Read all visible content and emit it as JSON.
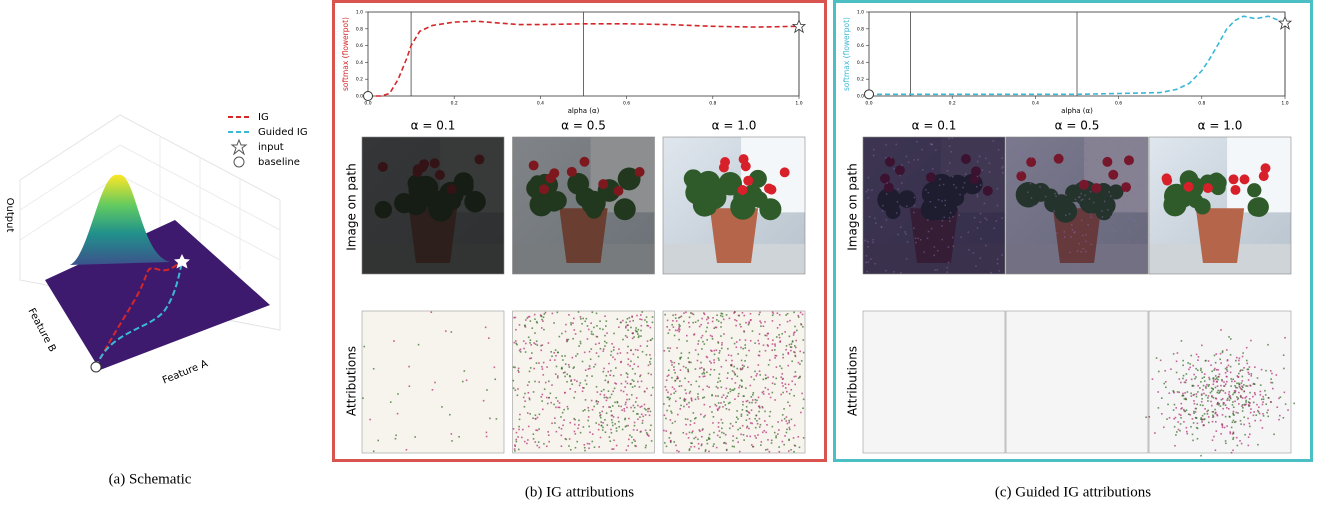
{
  "schematic": {
    "z_label": "Output",
    "y_label": "Feature B",
    "x_label": "Feature A",
    "legend": [
      {
        "label": "IG",
        "color": "#d62728"
      },
      {
        "label": "Guided IG",
        "color": "#3bb8d6"
      },
      {
        "label": "input"
      },
      {
        "label": "baseline"
      }
    ],
    "caption": "(a) Schematic"
  },
  "chart_data": [
    {
      "type": "line",
      "color": "#d62728",
      "frame_color": "#d9534f",
      "x_label": "alpha (α)",
      "y_label": "softmax (flowerpot)",
      "x": [
        0,
        0.03,
        0.05,
        0.07,
        0.09,
        0.1,
        0.12,
        0.15,
        0.2,
        0.25,
        0.3,
        0.35,
        0.4,
        0.5,
        0.6,
        0.7,
        0.8,
        0.9,
        1.0
      ],
      "values": [
        0.0,
        0.0,
        0.03,
        0.2,
        0.45,
        0.6,
        0.77,
        0.84,
        0.88,
        0.89,
        0.87,
        0.85,
        0.85,
        0.86,
        0.86,
        0.85,
        0.83,
        0.82,
        0.83
      ],
      "xlim": [
        0,
        1
      ],
      "ylim": [
        0,
        1
      ],
      "xticks": [
        {
          "value": 0,
          "label": "0.0"
        },
        {
          "value": 0.2,
          "label": "0.2"
        },
        {
          "value": 0.4,
          "label": "0.4"
        },
        {
          "value": 0.6,
          "label": "0.6"
        },
        {
          "value": 0.8,
          "label": "0.8"
        },
        {
          "value": 1,
          "label": "1.0"
        }
      ],
      "yticks": [
        {
          "value": 0,
          "label": "0.0"
        },
        {
          "value": 0.2,
          "label": "0.2"
        },
        {
          "value": 0.4,
          "label": "0.4"
        },
        {
          "value": 0.6,
          "label": "0.6"
        },
        {
          "value": 0.8,
          "label": "0.8"
        },
        {
          "value": 1,
          "label": "1.0"
        }
      ],
      "alphas": [
        0.1,
        0.5,
        1.0
      ],
      "columns": [
        "α = 0.1",
        "α = 0.5",
        "α = 1.0"
      ],
      "rows": [
        "Image on path",
        "Attributions"
      ],
      "caption": "(b) IG attributions"
    },
    {
      "type": "line",
      "color": "#3bb8d6",
      "frame_color": "#4bbfc4",
      "x_label": "alpha (α)",
      "y_label": "softmax (flowerpot)",
      "x": [
        0,
        0.1,
        0.2,
        0.3,
        0.4,
        0.5,
        0.6,
        0.7,
        0.74,
        0.77,
        0.8,
        0.82,
        0.84,
        0.86,
        0.88,
        0.9,
        0.93,
        0.96,
        1.0
      ],
      "values": [
        0.02,
        0.02,
        0.02,
        0.02,
        0.02,
        0.02,
        0.03,
        0.04,
        0.08,
        0.15,
        0.3,
        0.45,
        0.62,
        0.8,
        0.9,
        0.95,
        0.92,
        0.95,
        0.87
      ],
      "xlim": [
        0,
        1
      ],
      "ylim": [
        0,
        1
      ],
      "xticks": [
        {
          "value": 0,
          "label": "0.0"
        },
        {
          "value": 0.2,
          "label": "0.2"
        },
        {
          "value": 0.4,
          "label": "0.4"
        },
        {
          "value": 0.6,
          "label": "0.6"
        },
        {
          "value": 0.8,
          "label": "0.8"
        },
        {
          "value": 1,
          "label": "1.0"
        }
      ],
      "yticks": [
        {
          "value": 0,
          "label": "0.0"
        },
        {
          "value": 0.2,
          "label": "0.2"
        },
        {
          "value": 0.4,
          "label": "0.4"
        },
        {
          "value": 0.6,
          "label": "0.6"
        },
        {
          "value": 0.8,
          "label": "0.8"
        },
        {
          "value": 1,
          "label": "1.0"
        }
      ],
      "alphas": [
        0.1,
        0.5,
        1.0
      ],
      "columns": [
        "α = 0.1",
        "α = 0.5",
        "α = 1.0"
      ],
      "rows": [
        "Image on path",
        "Attributions"
      ],
      "caption": "(c) Guided IG attributions"
    }
  ]
}
